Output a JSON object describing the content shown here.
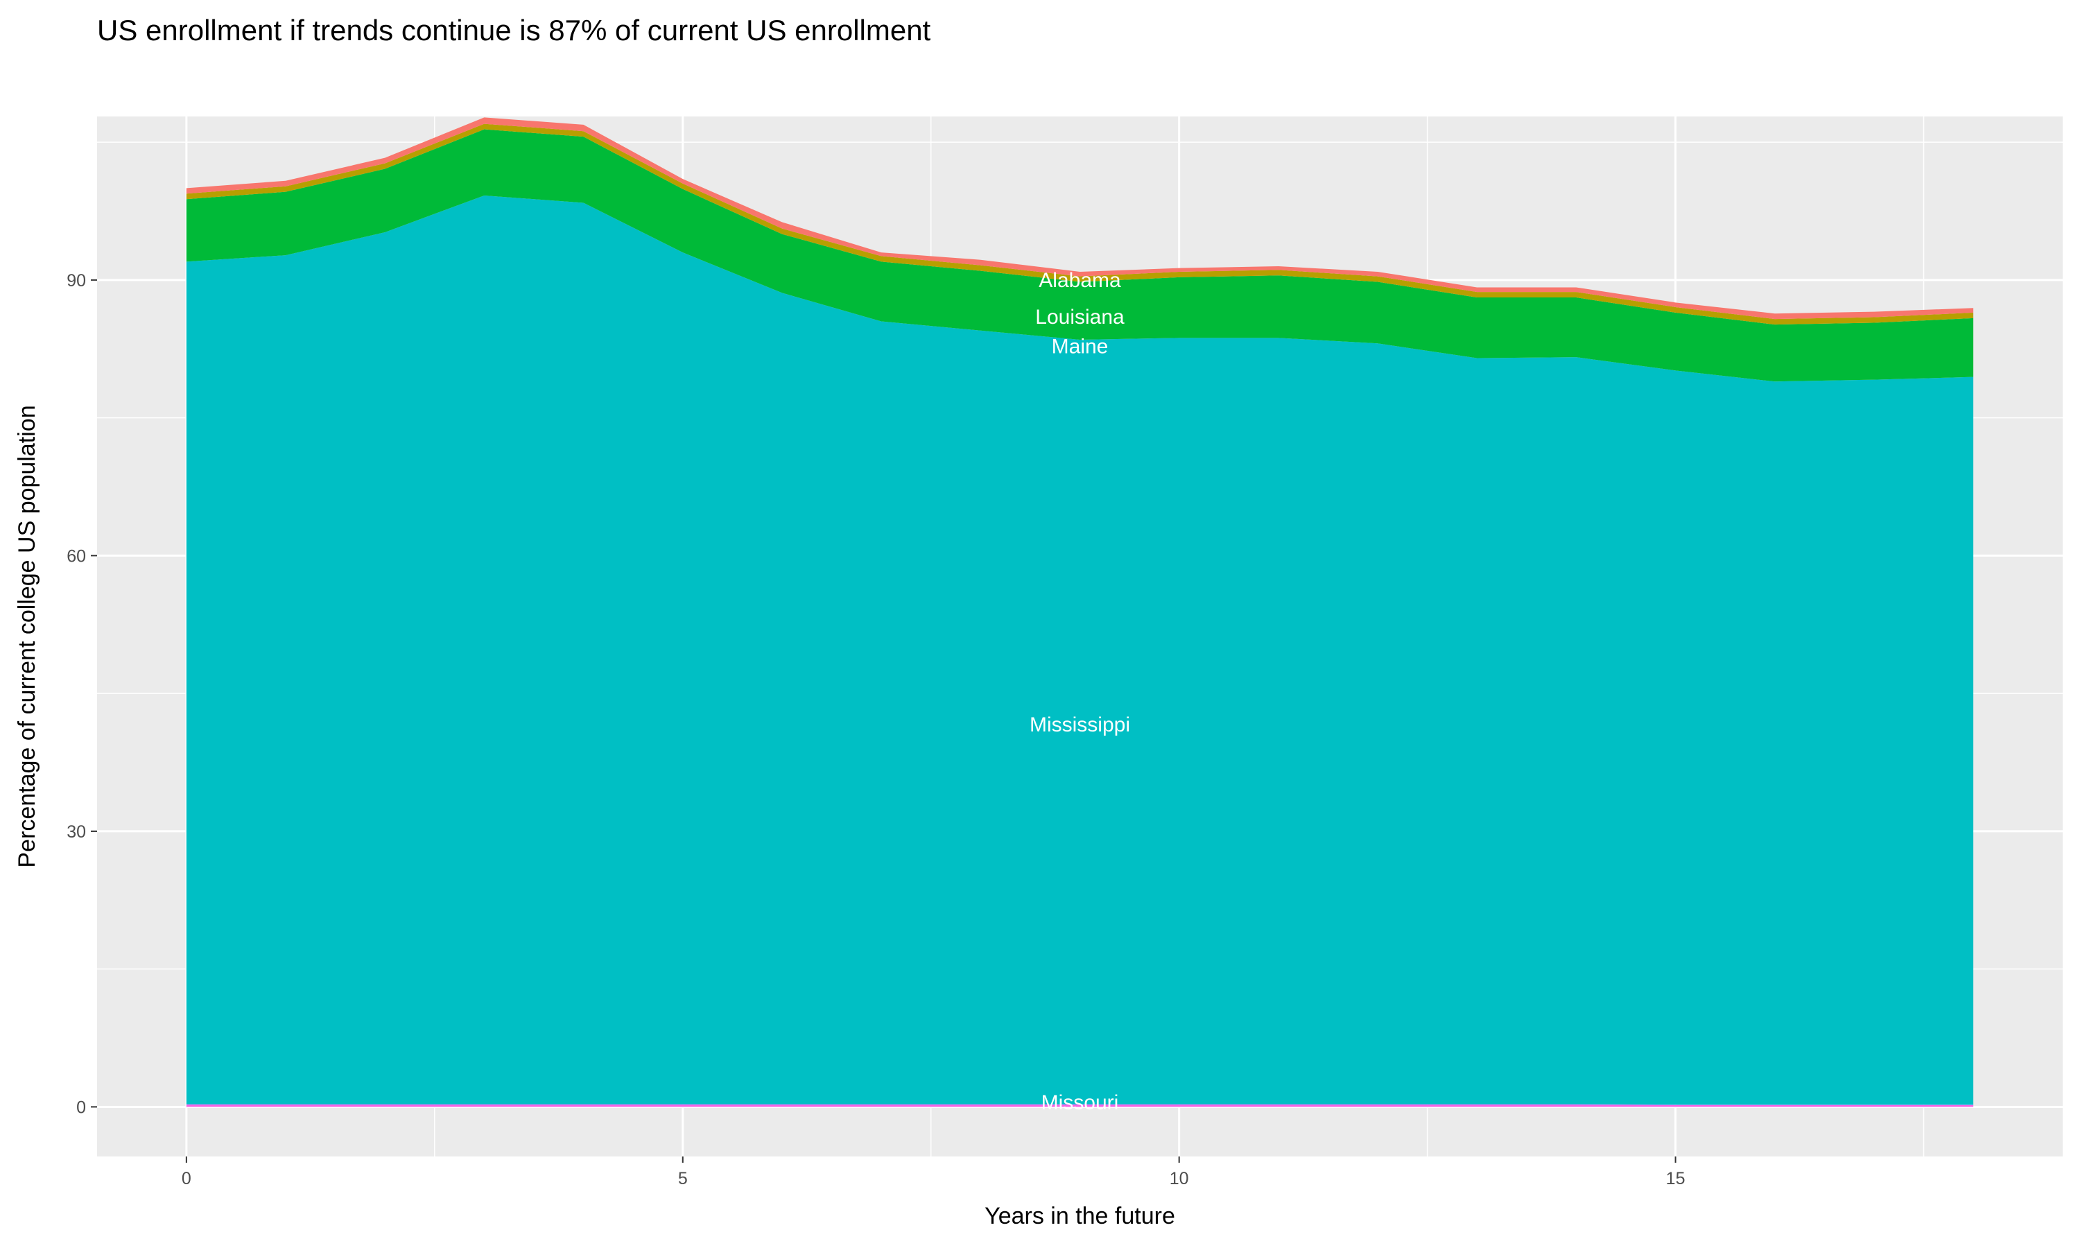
{
  "chart_data": {
    "type": "area",
    "stacked": true,
    "title": "US enrollment if trends continue is 87% of current US enrollment",
    "xlabel": "Years in the future",
    "ylabel": "Percentage of current college US population",
    "x": [
      0,
      1,
      2,
      3,
      4,
      5,
      6,
      7,
      8,
      9,
      10,
      11,
      12,
      13,
      14,
      15,
      16,
      17,
      18
    ],
    "xlim": [
      -0.9,
      18.9
    ],
    "ylim": [
      -5.4,
      107.8
    ],
    "x_ticks": [
      0,
      5,
      10,
      15
    ],
    "x_tick_labels": [
      "0",
      "5",
      "10",
      "15"
    ],
    "y_ticks": [
      0,
      30,
      60,
      90
    ],
    "y_tick_labels": [
      "0",
      "30",
      "60",
      "90"
    ],
    "grid": true,
    "legend": "none",
    "panel_background": "#EBEBEB",
    "series": [
      {
        "name": "Alabama",
        "color": "#F8766D",
        "values": [
          0.6,
          0.6,
          0.6,
          0.7,
          0.7,
          0.5,
          0.7,
          0.4,
          0.6,
          0.5,
          0.4,
          0.4,
          0.5,
          0.5,
          0.5,
          0.5,
          0.6,
          0.6,
          0.5
        ]
      },
      {
        "name": "Louisiana",
        "color": "#B79F00",
        "values": [
          0.6,
          0.6,
          0.6,
          0.6,
          0.6,
          0.6,
          0.6,
          0.6,
          0.6,
          0.6,
          0.6,
          0.6,
          0.6,
          0.6,
          0.6,
          0.6,
          0.6,
          0.6,
          0.6
        ]
      },
      {
        "name": "Maine",
        "color": "#00BA38",
        "values": [
          6.8,
          6.9,
          6.9,
          7.2,
          7.2,
          6.9,
          6.4,
          6.5,
          6.5,
          6.3,
          6.6,
          6.8,
          6.7,
          6.6,
          6.5,
          6.3,
          6.2,
          6.2,
          6.4
        ]
      },
      {
        "name": "Mississippi",
        "color": "#00BFC4",
        "values": [
          91.7,
          92.4,
          94.9,
          98.9,
          98.1,
          92.7,
          88.3,
          85.2,
          84.2,
          83.2,
          83.4,
          83.4,
          82.8,
          81.2,
          81.3,
          79.9,
          78.7,
          78.9,
          79.2
        ]
      },
      {
        "name": "Missouri",
        "color": "#619CFF",
        "values": [
          0.05,
          0.05,
          0.05,
          0.05,
          0.05,
          0.05,
          0.05,
          0.05,
          0.05,
          0.05,
          0.05,
          0.05,
          0.05,
          0.05,
          0.05,
          0.05,
          0.05,
          0.05,
          0.05
        ]
      },
      {
        "color": "#F564E3",
        "values": [
          0.25,
          0.25,
          0.25,
          0.25,
          0.25,
          0.25,
          0.25,
          0.25,
          0.25,
          0.25,
          0.25,
          0.25,
          0.25,
          0.25,
          0.25,
          0.2,
          0.2,
          0.2,
          0.2
        ]
      }
    ],
    "annotations": [
      {
        "text": "Alabama",
        "x": 9,
        "y": 90.0
      },
      {
        "text": "Louisiana",
        "x": 9,
        "y": 86.0
      },
      {
        "text": "Maine",
        "x": 9,
        "y": 82.8
      },
      {
        "text": "Mississippi",
        "x": 9,
        "y": 41.6
      },
      {
        "text": "Missouri",
        "x": 9,
        "y": 0.5
      }
    ]
  }
}
